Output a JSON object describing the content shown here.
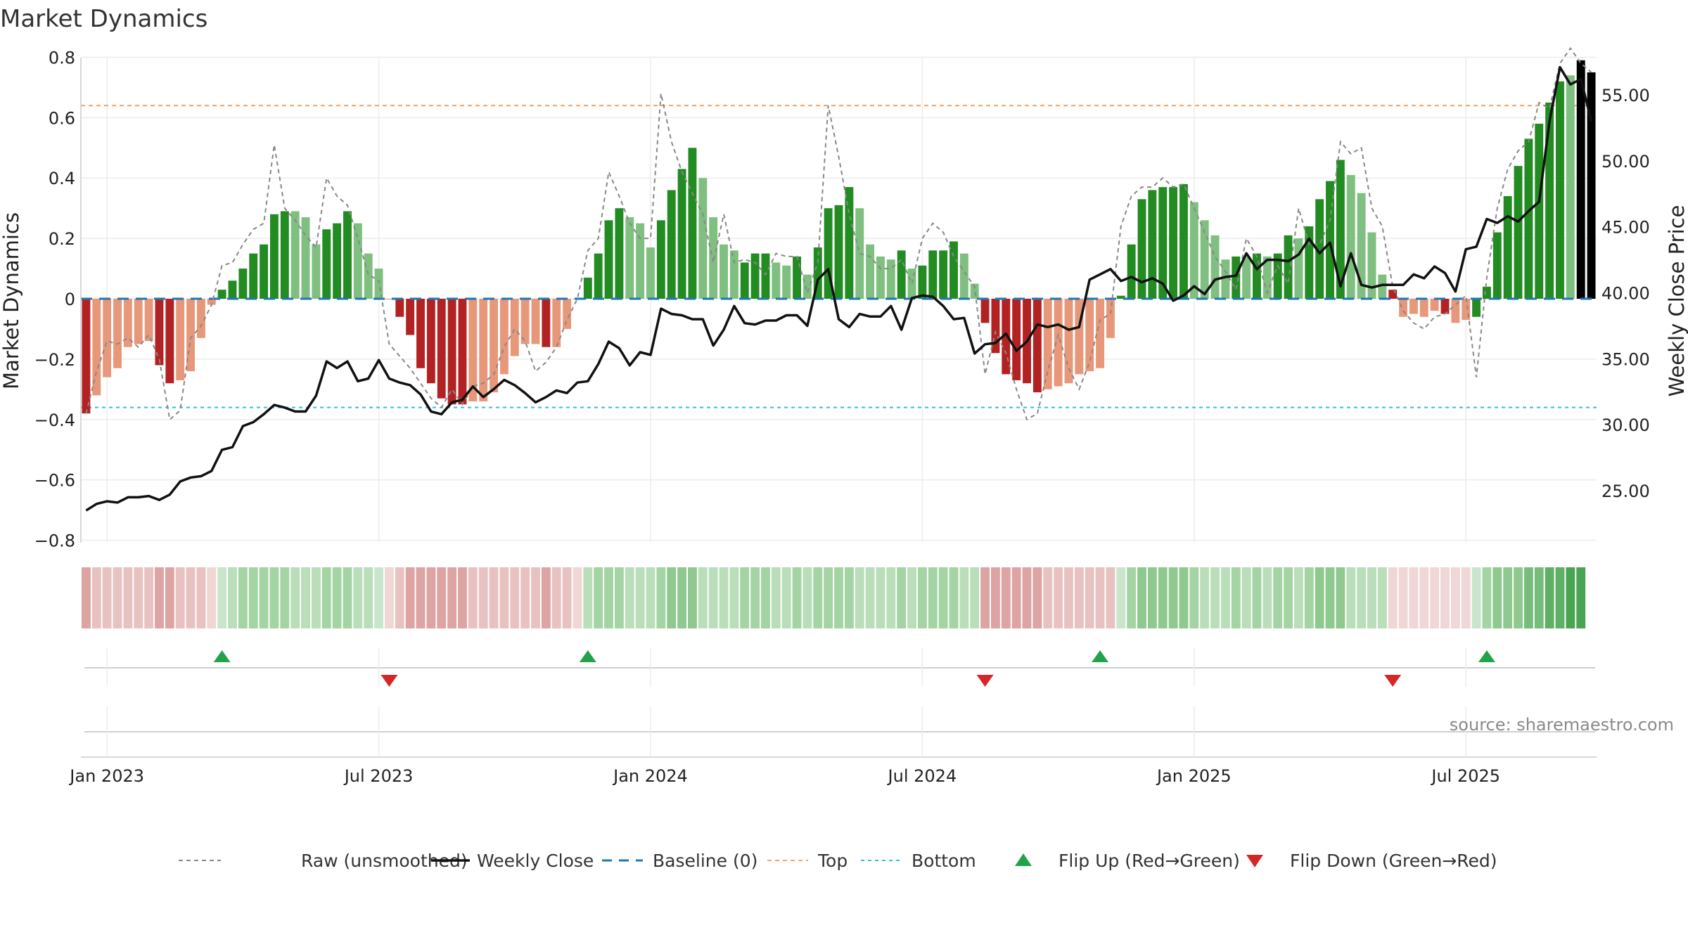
{
  "chart_data": {
    "type": "bar",
    "title": "Market Dynamics",
    "ylabel": "Market Dynamics",
    "y2label": "Weekly Close Price",
    "ylim": [
      -0.85,
      0.85
    ],
    "y2lim": [
      20.1,
      59.0
    ],
    "yticks": [
      {
        "v": 0.8,
        "label": "0.8"
      },
      {
        "v": 0.6,
        "label": "0.6"
      },
      {
        "v": 0.4,
        "label": "0.4"
      },
      {
        "v": 0.2,
        "label": "0.2"
      },
      {
        "v": 0,
        "label": "0"
      },
      {
        "v": -0.2,
        "label": "−0.2"
      },
      {
        "v": -0.4,
        "label": "−0.4"
      },
      {
        "v": -0.6,
        "label": "−0.6"
      },
      {
        "v": -0.8,
        "label": "−0.8"
      }
    ],
    "y2ticks": [
      {
        "v": 55,
        "label": "55.00"
      },
      {
        "v": 50,
        "label": "50.00"
      },
      {
        "v": 45,
        "label": "45.00"
      },
      {
        "v": 40,
        "label": "40.00"
      },
      {
        "v": 35,
        "label": "35.00"
      },
      {
        "v": 30,
        "label": "30.00"
      },
      {
        "v": 25,
        "label": "25.00"
      }
    ],
    "xticks": [
      {
        "week": 2.5,
        "label": "Jan 2023"
      },
      {
        "week": 28.5,
        "label": "Jul 2023"
      },
      {
        "week": 54.5,
        "label": "Jan 2024"
      },
      {
        "week": 80.5,
        "label": "Jul 2024"
      },
      {
        "week": 106.5,
        "label": "Jan 2025"
      },
      {
        "week": 132.5,
        "label": "Jul 2025"
      }
    ],
    "top_level": 0.64,
    "bottom_level": -0.36,
    "baseline": 0,
    "smoothed": [
      -0.38,
      -0.32,
      -0.26,
      -0.23,
      -0.16,
      -0.15,
      -0.14,
      -0.22,
      -0.28,
      -0.27,
      -0.24,
      -0.13,
      -0.02,
      0.03,
      0.06,
      0.1,
      0.15,
      0.18,
      0.28,
      0.29,
      0.29,
      0.27,
      0.18,
      0.23,
      0.25,
      0.29,
      0.25,
      0.15,
      0.1,
      0,
      -0.06,
      -0.12,
      -0.23,
      -0.28,
      -0.33,
      -0.35,
      -0.35,
      -0.34,
      -0.34,
      -0.31,
      -0.25,
      -0.19,
      -0.15,
      -0.15,
      -0.16,
      -0.16,
      -0.1,
      0,
      0.07,
      0.15,
      0.26,
      0.3,
      0.27,
      0.25,
      0.17,
      0.26,
      0.36,
      0.43,
      0.5,
      0.4,
      0.27,
      0.18,
      0.16,
      0.12,
      0.15,
      0.15,
      0.12,
      0.11,
      0.14,
      0.08,
      0.17,
      0.3,
      0.31,
      0.37,
      0.3,
      0.18,
      0.14,
      0.13,
      0.16,
      0.1,
      0.11,
      0.16,
      0.16,
      0.19,
      0.15,
      0.05,
      -0.08,
      -0.18,
      -0.25,
      -0.27,
      -0.28,
      -0.31,
      -0.3,
      -0.29,
      -0.28,
      -0.25,
      -0.24,
      -0.23,
      -0.13,
      0.01,
      0.18,
      0.33,
      0.36,
      0.37,
      0.37,
      0.38,
      0.32,
      0.26,
      0.21,
      0.13,
      0.14,
      0.14,
      0.15,
      0.14,
      0.15,
      0.21,
      0.2,
      0.24,
      0.33,
      0.39,
      0.46,
      0.41,
      0.35,
      0.22,
      0.08,
      0.03,
      -0.06,
      -0.05,
      -0.06,
      -0.04,
      -0.05,
      -0.08,
      -0.07,
      -0.06,
      0.04,
      0.22,
      0.34,
      0.44,
      0.53,
      0.58,
      0.65,
      0.72,
      0.74,
      0.79,
      0.75
    ],
    "colors": [
      "dr",
      "sr",
      "sr",
      "sr",
      "sr",
      "sr",
      "sr",
      "dr",
      "dr",
      "sr",
      "sr",
      "sr",
      "sr",
      "dg",
      "dg",
      "dg",
      "dg",
      "dg",
      "dg",
      "dg",
      "lg",
      "lg",
      "lg",
      "dg",
      "dg",
      "dg",
      "lg",
      "lg",
      "lg",
      "sr",
      "dr",
      "dr",
      "dr",
      "dr",
      "dr",
      "dr",
      "dr",
      "sr",
      "sr",
      "sr",
      "sr",
      "sr",
      "sr",
      "sr",
      "dr",
      "sr",
      "sr",
      "sr",
      "dg",
      "dg",
      "dg",
      "dg",
      "lg",
      "lg",
      "lg",
      "dg",
      "dg",
      "dg",
      "dg",
      "lg",
      "lg",
      "lg",
      "lg",
      "dg",
      "dg",
      "dg",
      "lg",
      "lg",
      "dg",
      "lg",
      "dg",
      "dg",
      "dg",
      "dg",
      "lg",
      "lg",
      "lg",
      "lg",
      "dg",
      "lg",
      "dg",
      "dg",
      "dg",
      "dg",
      "lg",
      "lg",
      "dr",
      "dr",
      "dr",
      "dr",
      "dr",
      "dr",
      "sr",
      "sr",
      "sr",
      "sr",
      "sr",
      "sr",
      "sr",
      "dg",
      "dg",
      "dg",
      "dg",
      "dg",
      "dg",
      "dg",
      "lg",
      "lg",
      "lg",
      "lg",
      "dg",
      "lg",
      "dg",
      "lg",
      "dg",
      "dg",
      "lg",
      "dg",
      "dg",
      "dg",
      "dg",
      "lg",
      "lg",
      "lg",
      "lg",
      "dr",
      "sr",
      "sr",
      "sr",
      "sr",
      "dr",
      "sr",
      "sr",
      "dg",
      "dg",
      "dg",
      "dg",
      "dg",
      "dg",
      "dg",
      "dg",
      "dg",
      "lg"
    ],
    "raw": [
      -0.38,
      -0.24,
      -0.14,
      -0.15,
      -0.13,
      -0.16,
      -0.12,
      -0.2,
      -0.4,
      -0.37,
      -0.13,
      -0.09,
      -0.02,
      0.11,
      0.12,
      0.18,
      0.23,
      0.25,
      0.51,
      0.3,
      0.26,
      0.21,
      0.17,
      0.4,
      0.34,
      0.31,
      0.2,
      0.08,
      0.06,
      -0.15,
      -0.19,
      -0.23,
      -0.28,
      -0.33,
      -0.36,
      -0.3,
      -0.35,
      -0.29,
      -0.28,
      -0.25,
      -0.16,
      -0.1,
      -0.14,
      -0.24,
      -0.21,
      -0.16,
      -0.07,
      0.0,
      0.16,
      0.2,
      0.42,
      0.34,
      0.25,
      0.2,
      0.2,
      0.68,
      0.52,
      0.42,
      0.35,
      0.28,
      0.12,
      0.28,
      0.12,
      0.13,
      0.12,
      0.08,
      0.15,
      0.14,
      0.14,
      0.02,
      0.12,
      0.64,
      0.47,
      0.28,
      0.15,
      0.14,
      0.1,
      0.1,
      0.13,
      0.05,
      0.2,
      0.25,
      0.22,
      0.14,
      0.09,
      0.04,
      -0.25,
      -0.11,
      -0.18,
      -0.3,
      -0.4,
      -0.38,
      -0.24,
      -0.12,
      -0.23,
      -0.3,
      -0.21,
      -0.07,
      -0.05,
      0.24,
      0.34,
      0.37,
      0.37,
      0.4,
      0.37,
      0.38,
      0.3,
      0.22,
      0.14,
      0.09,
      0.03,
      0.2,
      0.14,
      0.02,
      0.11,
      0.05,
      0.3,
      0.18,
      0.18,
      0.26,
      0.52,
      0.48,
      0.5,
      0.3,
      0.24,
      0.04,
      -0.04,
      -0.08,
      -0.1,
      -0.06,
      -0.05,
      -0.02,
      0.01,
      -0.26,
      0.07,
      0.3,
      0.43,
      0.49,
      0.52,
      0.65,
      0.63,
      0.78,
      0.83,
      0.78,
      0.75
    ],
    "close": [
      23.5,
      24.0,
      24.2,
      24.1,
      24.5,
      24.5,
      24.6,
      24.3,
      24.7,
      25.7,
      26.0,
      26.1,
      26.5,
      28.1,
      28.3,
      29.9,
      30.2,
      30.8,
      31.5,
      31.3,
      31.0,
      31.0,
      32.2,
      34.8,
      34.3,
      34.8,
      33.3,
      33.5,
      34.9,
      33.5,
      33.2,
      33.0,
      32.3,
      31.0,
      30.8,
      31.7,
      31.9,
      32.9,
      32.1,
      32.7,
      33.4,
      33.0,
      32.4,
      31.7,
      32.1,
      32.6,
      32.4,
      33.2,
      33.3,
      34.6,
      36.3,
      35.8,
      34.5,
      35.5,
      35.3,
      38.8,
      38.4,
      38.3,
      38.0,
      38.0,
      36.0,
      37.2,
      39.0,
      37.7,
      37.6,
      37.9,
      37.9,
      38.3,
      38.3,
      37.5,
      41.0,
      41.8,
      38.0,
      37.4,
      38.4,
      38.2,
      38.2,
      39.0,
      37.2,
      39.6,
      39.8,
      39.7,
      39.0,
      38.0,
      38.1,
      35.4,
      36.1,
      36.2,
      36.9,
      35.6,
      36.3,
      37.6,
      37.4,
      37.6,
      37.2,
      37.4,
      41.0,
      41.4,
      41.8,
      40.9,
      41.2,
      40.8,
      41.1,
      40.7,
      39.4,
      39.8,
      40.5,
      39.9,
      41.0,
      41.2,
      41.3,
      43.0,
      41.8,
      42.5,
      42.5,
      42.4,
      42.9,
      44.1,
      43.0,
      43.8,
      40.5,
      43.0,
      40.6,
      40.4,
      40.6,
      40.6,
      40.6,
      41.4,
      41.1,
      42.0,
      41.5,
      40.1,
      43.3,
      43.5,
      45.6,
      45.3,
      45.8,
      45.4,
      46.2,
      46.9,
      53.0,
      57.1,
      55.8,
      56.2,
      53.0
    ],
    "regime_colors": [
      "#dda4a3",
      "#e8c2c1",
      "#e8c2c1",
      "#e8c2c1",
      "#e8c2c1",
      "#e8c2c1",
      "#e8c2c1",
      "#dda4a3",
      "#dda4a3",
      "#e8c2c1",
      "#e8c2c1",
      "#e8c2c1",
      "#f0d6d5",
      "#c9e6cc",
      "#b9deb9",
      "#a4d4a4",
      "#a4d4a4",
      "#a4d4a4",
      "#a4d4a4",
      "#a4d4a4",
      "#b9deb9",
      "#b9deb9",
      "#b9deb9",
      "#a4d4a4",
      "#a4d4a4",
      "#a4d4a4",
      "#b9deb9",
      "#b9deb9",
      "#c9e6cc",
      "#f0d6d5",
      "#e8c2c1",
      "#dda4a3",
      "#dda4a3",
      "#dda4a3",
      "#dda4a3",
      "#dda4a3",
      "#dda4a3",
      "#e8c2c1",
      "#e8c2c1",
      "#e8c2c1",
      "#e8c2c1",
      "#e8c2c1",
      "#e8c2c1",
      "#e8c2c1",
      "#dda4a3",
      "#e8c2c1",
      "#e8c2c1",
      "#f0d6d5",
      "#b9deb9",
      "#a4d4a4",
      "#a4d4a4",
      "#a4d4a4",
      "#b9deb9",
      "#b9deb9",
      "#b9deb9",
      "#a4d4a4",
      "#8fc98f",
      "#8fc98f",
      "#8fc98f",
      "#b9deb9",
      "#b9deb9",
      "#b9deb9",
      "#b9deb9",
      "#a4d4a4",
      "#a4d4a4",
      "#a4d4a4",
      "#b9deb9",
      "#b9deb9",
      "#a4d4a4",
      "#b9deb9",
      "#a4d4a4",
      "#a4d4a4",
      "#a4d4a4",
      "#a4d4a4",
      "#b9deb9",
      "#b9deb9",
      "#b9deb9",
      "#b9deb9",
      "#a4d4a4",
      "#b9deb9",
      "#a4d4a4",
      "#a4d4a4",
      "#a4d4a4",
      "#a4d4a4",
      "#b9deb9",
      "#b9deb9",
      "#dda4a3",
      "#dda4a3",
      "#dda4a3",
      "#dda4a3",
      "#dda4a3",
      "#dda4a3",
      "#e8c2c1",
      "#e8c2c1",
      "#e8c2c1",
      "#e8c2c1",
      "#e8c2c1",
      "#e8c2c1",
      "#e8c2c1",
      "#c9e6cc",
      "#a4d4a4",
      "#8fc98f",
      "#8fc98f",
      "#8fc98f",
      "#8fc98f",
      "#8fc98f",
      "#a4d4a4",
      "#b9deb9",
      "#b9deb9",
      "#b9deb9",
      "#a4d4a4",
      "#b9deb9",
      "#a4d4a4",
      "#b9deb9",
      "#a4d4a4",
      "#a4d4a4",
      "#b9deb9",
      "#a4d4a4",
      "#8fc98f",
      "#8fc98f",
      "#8fc98f",
      "#b9deb9",
      "#b9deb9",
      "#b9deb9",
      "#b9deb9",
      "#f0d6d5",
      "#f0d6d5",
      "#f0d6d5",
      "#f0d6d5",
      "#f0d6d5",
      "#f0d6d5",
      "#f0d6d5",
      "#f0d6d5",
      "#c9e6cc",
      "#a4d4a4",
      "#8fc98f",
      "#8fc98f",
      "#8fc98f",
      "#76bd7c",
      "#76bd7c",
      "#5fb066",
      "#5fb066",
      "#4aa552",
      "#4aa552"
    ],
    "flips_up": [
      13,
      48,
      97,
      134
    ],
    "flips_down": [
      29,
      86,
      125
    ],
    "source": "source: sharemaestro.com",
    "legend": [
      {
        "key": "raw",
        "label": "Raw (unsmoothed)"
      },
      {
        "key": "close",
        "label": "Weekly Close"
      },
      {
        "key": "baseline",
        "label": "Baseline (0)"
      },
      {
        "key": "top",
        "label": "Top"
      },
      {
        "key": "bottom",
        "label": "Bottom"
      },
      {
        "key": "flipup",
        "label": "Flip Up (Red→Green)"
      },
      {
        "key": "flipdown",
        "label": "Flip Down (Green→Red)"
      }
    ],
    "palette": {
      "dark_red": "#b22222",
      "soft_red": "#e8987a",
      "dark_green": "#228b22",
      "light_green": "#7fbf7f",
      "close_line": "#111111",
      "raw_line": "#888888",
      "baseline": "#1f77b4",
      "top": "#f4a460",
      "bottom": "#35c0d0",
      "flip_up": "#22a34a",
      "flip_down": "#d62728"
    }
  }
}
